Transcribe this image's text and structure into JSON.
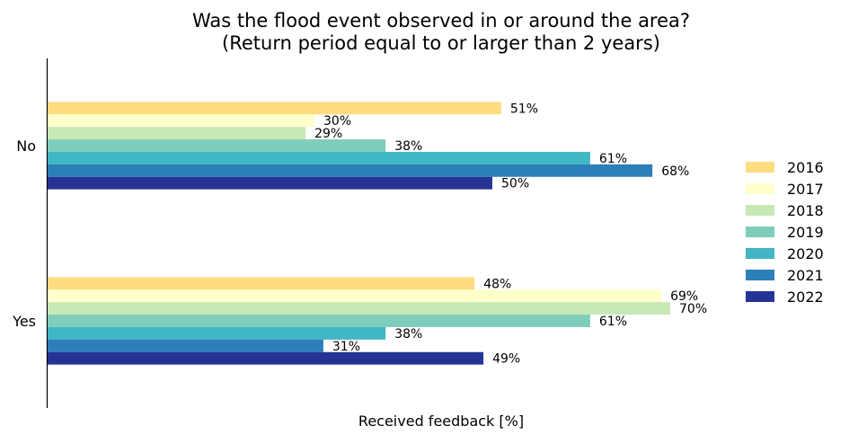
{
  "chart_data": {
    "type": "bar",
    "orientation": "horizontal",
    "title": "Was the flood event observed in or around the area?",
    "subtitle": "(Return period equal to or larger than 2 years)",
    "xlabel": "Received feedback [%]",
    "ylabel": "",
    "categories": [
      "No",
      "Yes"
    ],
    "series": [
      {
        "name": "2016",
        "color": "#fedc7f",
        "values": [
          51,
          48
        ]
      },
      {
        "name": "2017",
        "color": "#ffffcc",
        "values": [
          30,
          69
        ]
      },
      {
        "name": "2018",
        "color": "#c7e9b4",
        "values": [
          29,
          70
        ]
      },
      {
        "name": "2019",
        "color": "#7fcdbb",
        "values": [
          38,
          61
        ]
      },
      {
        "name": "2020",
        "color": "#41b6c4",
        "values": [
          61,
          38
        ]
      },
      {
        "name": "2021",
        "color": "#2c7fb8",
        "values": [
          68,
          31
        ]
      },
      {
        "name": "2022",
        "color": "#253494",
        "values": [
          50,
          49
        ]
      }
    ],
    "value_suffix": "%",
    "grid": false,
    "legend_position": "right"
  }
}
